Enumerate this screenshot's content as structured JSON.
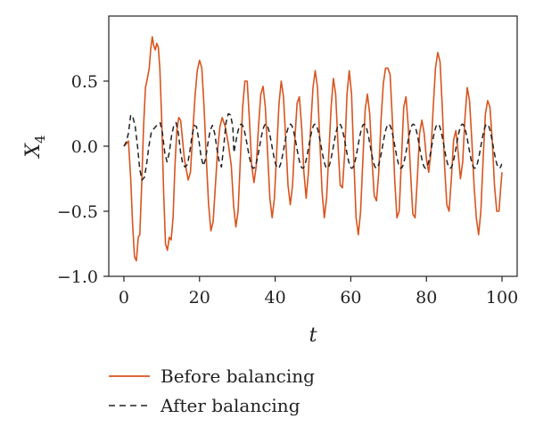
{
  "chart_data": {
    "type": "line",
    "xlabel": "t",
    "ylabel": "X",
    "ylabel_sub": "4",
    "xlim": [
      -4,
      104
    ],
    "ylim": [
      -1.0,
      1.0
    ],
    "xticks": [
      0,
      20,
      40,
      60,
      80,
      100
    ],
    "yticks": [
      -1.0,
      -0.5,
      0.0,
      0.5
    ],
    "ytick_labels": [
      "−1.0",
      "−0.5",
      "0.0",
      "0.5"
    ],
    "grid": false,
    "legend_position": "below",
    "series": [
      {
        "name": "Before balancing",
        "color": "#d9541e",
        "style": "solid",
        "points": [
          [
            0,
            0.0
          ],
          [
            0.7,
            0.02
          ],
          [
            1.2,
            0.04
          ],
          [
            1.8,
            -0.25
          ],
          [
            2.3,
            -0.6
          ],
          [
            2.8,
            -0.85
          ],
          [
            3.3,
            -0.88
          ],
          [
            3.8,
            -0.7
          ],
          [
            4.2,
            -0.68
          ],
          [
            4.7,
            -0.3
          ],
          [
            5.2,
            0.15
          ],
          [
            5.7,
            0.45
          ],
          [
            6.2,
            0.52
          ],
          [
            6.7,
            0.6
          ],
          [
            7.1,
            0.75
          ],
          [
            7.5,
            0.84
          ],
          [
            7.9,
            0.77
          ],
          [
            8.3,
            0.74
          ],
          [
            8.7,
            0.79
          ],
          [
            9.1,
            0.76
          ],
          [
            9.5,
            0.6
          ],
          [
            10.0,
            0.2
          ],
          [
            10.5,
            -0.35
          ],
          [
            11.0,
            -0.75
          ],
          [
            11.5,
            -0.8
          ],
          [
            12.0,
            -0.7
          ],
          [
            12.5,
            -0.72
          ],
          [
            13.0,
            -0.55
          ],
          [
            13.5,
            -0.15
          ],
          [
            14.0,
            0.12
          ],
          [
            14.5,
            0.22
          ],
          [
            15.0,
            0.2
          ],
          [
            15.5,
            0.05
          ],
          [
            16.0,
            -0.1
          ],
          [
            16.5,
            -0.18
          ],
          [
            17.0,
            -0.26
          ],
          [
            17.6,
            -0.2
          ],
          [
            18.2,
            0.1
          ],
          [
            18.8,
            0.38
          ],
          [
            19.4,
            0.58
          ],
          [
            20.0,
            0.66
          ],
          [
            20.6,
            0.6
          ],
          [
            21.2,
            0.3
          ],
          [
            21.8,
            -0.1
          ],
          [
            22.4,
            -0.45
          ],
          [
            23.0,
            -0.65
          ],
          [
            23.6,
            -0.58
          ],
          [
            24.2,
            -0.3
          ],
          [
            24.8,
            -0.02
          ],
          [
            25.4,
            0.15
          ],
          [
            26.0,
            0.22
          ],
          [
            26.8,
            0.15
          ],
          [
            27.6,
            0.02
          ],
          [
            28.4,
            -0.15
          ],
          [
            29.0,
            -0.45
          ],
          [
            29.6,
            -0.62
          ],
          [
            30.2,
            -0.5
          ],
          [
            30.8,
            -0.1
          ],
          [
            31.4,
            0.3
          ],
          [
            32.0,
            0.5
          ],
          [
            32.6,
            0.5
          ],
          [
            33.2,
            0.2
          ],
          [
            33.8,
            -0.15
          ],
          [
            34.4,
            -0.28
          ],
          [
            35.0,
            -0.15
          ],
          [
            35.6,
            0.15
          ],
          [
            36.2,
            0.4
          ],
          [
            36.8,
            0.46
          ],
          [
            37.4,
            0.3
          ],
          [
            38.0,
            -0.05
          ],
          [
            38.6,
            -0.4
          ],
          [
            39.2,
            -0.55
          ],
          [
            39.8,
            -0.4
          ],
          [
            40.4,
            -0.05
          ],
          [
            41.0,
            0.32
          ],
          [
            41.6,
            0.5
          ],
          [
            42.2,
            0.38
          ],
          [
            42.8,
            0.05
          ],
          [
            43.4,
            -0.3
          ],
          [
            44.0,
            -0.45
          ],
          [
            44.6,
            -0.3
          ],
          [
            45.2,
            0.05
          ],
          [
            45.8,
            0.33
          ],
          [
            46.4,
            0.38
          ],
          [
            47.0,
            0.15
          ],
          [
            47.6,
            -0.2
          ],
          [
            48.2,
            -0.4
          ],
          [
            48.8,
            -0.2
          ],
          [
            49.4,
            0.15
          ],
          [
            50.0,
            0.45
          ],
          [
            50.6,
            0.58
          ],
          [
            51.2,
            0.45
          ],
          [
            51.8,
            0.05
          ],
          [
            52.4,
            -0.35
          ],
          [
            53.0,
            -0.55
          ],
          [
            53.6,
            -0.4
          ],
          [
            54.2,
            -0.05
          ],
          [
            54.8,
            0.3
          ],
          [
            55.4,
            0.52
          ],
          [
            56.0,
            0.4
          ],
          [
            56.6,
            0.02
          ],
          [
            57.2,
            -0.3
          ],
          [
            57.8,
            -0.32
          ],
          [
            58.4,
            -0.05
          ],
          [
            59.0,
            0.4
          ],
          [
            59.6,
            0.58
          ],
          [
            60.2,
            0.4
          ],
          [
            60.8,
            -0.1
          ],
          [
            61.4,
            -0.55
          ],
          [
            62.0,
            -0.68
          ],
          [
            62.6,
            -0.5
          ],
          [
            63.2,
            -0.1
          ],
          [
            63.8,
            0.28
          ],
          [
            64.4,
            0.4
          ],
          [
            65.0,
            0.25
          ],
          [
            65.6,
            -0.1
          ],
          [
            66.2,
            -0.38
          ],
          [
            66.8,
            -0.42
          ],
          [
            67.4,
            -0.2
          ],
          [
            68.0,
            0.2
          ],
          [
            68.6,
            0.48
          ],
          [
            69.2,
            0.6
          ],
          [
            69.8,
            0.6
          ],
          [
            70.4,
            0.55
          ],
          [
            71.0,
            0.2
          ],
          [
            71.6,
            -0.25
          ],
          [
            72.2,
            -0.55
          ],
          [
            72.8,
            -0.5
          ],
          [
            73.4,
            -0.1
          ],
          [
            74.0,
            0.3
          ],
          [
            74.6,
            0.38
          ],
          [
            75.2,
            0.15
          ],
          [
            75.8,
            -0.2
          ],
          [
            76.4,
            -0.52
          ],
          [
            77.0,
            -0.55
          ],
          [
            77.6,
            -0.25
          ],
          [
            78.2,
            0.1
          ],
          [
            78.8,
            0.2
          ],
          [
            79.4,
            0.1
          ],
          [
            80.0,
            -0.1
          ],
          [
            80.6,
            -0.2
          ],
          [
            81.2,
            -0.05
          ],
          [
            81.8,
            0.3
          ],
          [
            82.4,
            0.6
          ],
          [
            83.0,
            0.72
          ],
          [
            83.6,
            0.65
          ],
          [
            84.2,
            0.3
          ],
          [
            84.8,
            -0.15
          ],
          [
            85.4,
            -0.45
          ],
          [
            86.0,
            -0.5
          ],
          [
            86.6,
            -0.25
          ],
          [
            87.2,
            0.05
          ],
          [
            87.8,
            0.12
          ],
          [
            88.4,
            -0.05
          ],
          [
            89.0,
            -0.25
          ],
          [
            89.6,
            -0.12
          ],
          [
            90.2,
            0.22
          ],
          [
            90.8,
            0.45
          ],
          [
            91.4,
            0.35
          ],
          [
            92.0,
            0.05
          ],
          [
            92.6,
            -0.3
          ],
          [
            93.2,
            -0.55
          ],
          [
            93.8,
            -0.68
          ],
          [
            94.4,
            -0.5
          ],
          [
            95.0,
            -0.1
          ],
          [
            95.6,
            0.25
          ],
          [
            96.2,
            0.35
          ],
          [
            96.8,
            0.3
          ],
          [
            97.4,
            0.05
          ],
          [
            98.0,
            -0.3
          ],
          [
            98.6,
            -0.5
          ],
          [
            99.2,
            -0.5
          ],
          [
            99.7,
            -0.3
          ],
          [
            100,
            -0.2
          ]
        ]
      },
      {
        "name": "After balancing",
        "color": "#222222",
        "style": "dashed",
        "amplitude": 0.17,
        "period": 6.5,
        "points": [
          [
            0,
            0.0
          ],
          [
            0.6,
            0.03
          ],
          [
            1.2,
            0.1
          ],
          [
            1.8,
            0.24
          ],
          [
            2.4,
            0.22
          ],
          [
            3.0,
            0.15
          ],
          [
            3.6,
            0.0
          ],
          [
            4.2,
            -0.18
          ],
          [
            4.8,
            -0.26
          ],
          [
            5.4,
            -0.24
          ],
          [
            6.0,
            -0.14
          ],
          [
            6.6,
            0.0
          ],
          [
            7.2,
            0.1
          ],
          [
            7.8,
            0.13
          ],
          [
            8.4,
            0.15
          ],
          [
            9.0,
            0.17
          ],
          [
            9.6,
            0.18
          ],
          [
            10.2,
            0.1
          ],
          [
            10.8,
            -0.05
          ],
          [
            11.4,
            -0.12
          ],
          [
            12.0,
            -0.05
          ],
          [
            12.6,
            0.08
          ],
          [
            13.2,
            0.16
          ],
          [
            13.8,
            0.18
          ],
          [
            14.4,
            0.1
          ],
          [
            15.0,
            -0.05
          ],
          [
            15.6,
            -0.14
          ],
          [
            16.2,
            -0.16
          ],
          [
            16.8,
            -0.14
          ],
          [
            17.4,
            -0.05
          ],
          [
            18.0,
            0.08
          ],
          [
            18.6,
            0.16
          ],
          [
            19.2,
            0.15
          ],
          [
            19.8,
            0.05
          ],
          [
            20.4,
            -0.08
          ],
          [
            21.0,
            -0.15
          ],
          [
            21.6,
            -0.1
          ],
          [
            22.2,
            0.02
          ],
          [
            22.8,
            0.12
          ],
          [
            23.4,
            0.16
          ],
          [
            24.0,
            0.1
          ],
          [
            24.6,
            -0.02
          ],
          [
            25.2,
            -0.12
          ],
          [
            25.8,
            -0.16
          ],
          [
            26.4,
            0.0
          ],
          [
            27.0,
            0.18
          ],
          [
            27.6,
            0.25
          ],
          [
            28.2,
            0.24
          ],
          [
            28.8,
            0.15
          ]
        ]
      }
    ]
  }
}
